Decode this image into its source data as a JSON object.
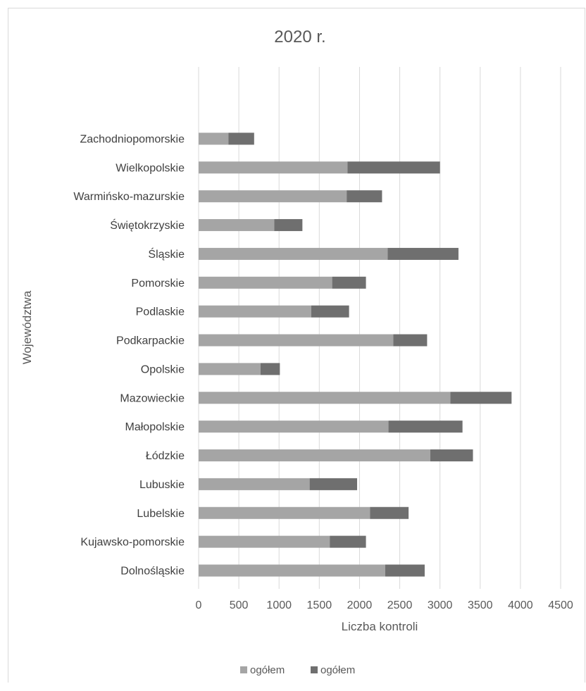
{
  "chart_data": {
    "type": "bar",
    "orientation": "horizontal",
    "stacked": true,
    "title": "2020 r.",
    "xlabel": "Liczba kontroli",
    "ylabel": "Województwa",
    "xlim": [
      0,
      4500
    ],
    "xticks": [
      0,
      500,
      1000,
      1500,
      2000,
      2500,
      3000,
      3500,
      4000,
      4500
    ],
    "grid": "vertical",
    "legend_position": "bottom",
    "categories": [
      "Dolnośląskie",
      "Kujawsko-pomorskie",
      "Lubelskie",
      "Lubuskie",
      "Łódzkie",
      "Małopolskie",
      "Mazowieckie",
      "Opolskie",
      "Podkarpackie",
      "Podlaskie",
      "Pomorskie",
      "Śląskie",
      "Świętokrzyskie",
      "Warmińsko-mazurskie",
      "Wielkopolskie",
      "Zachodniopomorskie"
    ],
    "series": [
      {
        "name": "ogółem",
        "color": "#a5a5a5",
        "values": [
          2320,
          1630,
          2130,
          1380,
          2880,
          2360,
          3130,
          770,
          2420,
          1400,
          1660,
          2350,
          940,
          1840,
          1850,
          370
        ]
      },
      {
        "name": "ogółem",
        "color": "#6f6f6f",
        "values": [
          490,
          450,
          480,
          590,
          530,
          920,
          760,
          240,
          420,
          470,
          420,
          880,
          350,
          440,
          1150,
          320
        ]
      }
    ]
  }
}
